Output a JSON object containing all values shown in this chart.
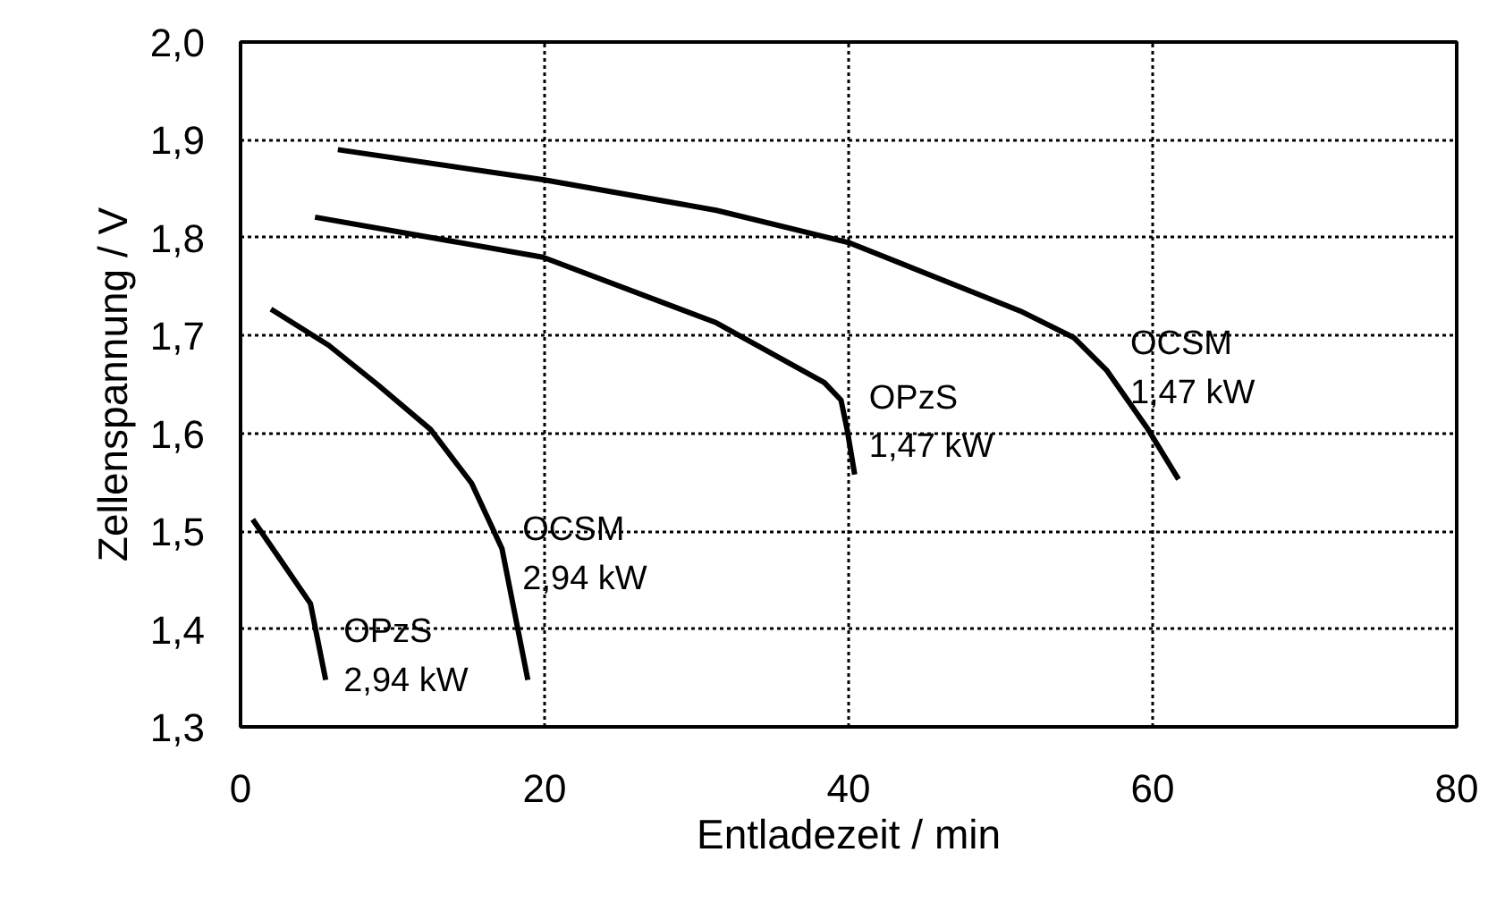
{
  "chart_data": {
    "type": "line",
    "xlabel": "Entladezeit / min",
    "ylabel": "Zellenspannung / V",
    "xlim": [
      0,
      80
    ],
    "xticks": [
      0,
      20,
      40,
      60,
      80
    ],
    "ylim": [
      1.3,
      2.0
    ],
    "yticks": [
      {
        "value": 1.3,
        "label": "1,3"
      },
      {
        "value": 1.4,
        "label": "1,4"
      },
      {
        "value": 1.5,
        "label": "1,5"
      },
      {
        "value": 1.6,
        "label": "1,6"
      },
      {
        "value": 1.7,
        "label": "1,7"
      },
      {
        "value": 1.8,
        "label": "1,8"
      },
      {
        "value": 1.9,
        "label": "1,9"
      },
      {
        "value": 2.0,
        "label": "2,0"
      }
    ],
    "grid": true,
    "line_style": "solid",
    "marker": "none",
    "series": [
      {
        "name": "OCSM\n1,47 kW",
        "color": "#000000",
        "x": [
          6.4,
          20,
          31.3,
          40,
          51.3,
          54.8,
          57,
          59.7,
          61.7
        ],
        "values": [
          1.89,
          1.859,
          1.828,
          1.795,
          1.725,
          1.698,
          1.664,
          1.604,
          1.553
        ]
      },
      {
        "name": "OPzS\n1,47 kW",
        "color": "#000000",
        "x": [
          4.9,
          19.9,
          31.3,
          38.4,
          39.5,
          39.9,
          40.4
        ],
        "values": [
          1.821,
          1.78,
          1.713,
          1.652,
          1.634,
          1.604,
          1.558
        ]
      },
      {
        "name": "OCSM\n2,94 kW",
        "color": "#000000",
        "x": [
          2.0,
          5.8,
          9,
          12.5,
          15.2,
          17.2,
          18.9
        ],
        "values": [
          1.727,
          1.69,
          1.65,
          1.604,
          1.549,
          1.482,
          1.348
        ]
      },
      {
        "name": "OPzS\n2,94 kW",
        "color": "#000000",
        "x": [
          0.8,
          2.7,
          4.6,
          5.6
        ],
        "values": [
          1.512,
          1.469,
          1.426,
          1.348
        ]
      }
    ]
  }
}
